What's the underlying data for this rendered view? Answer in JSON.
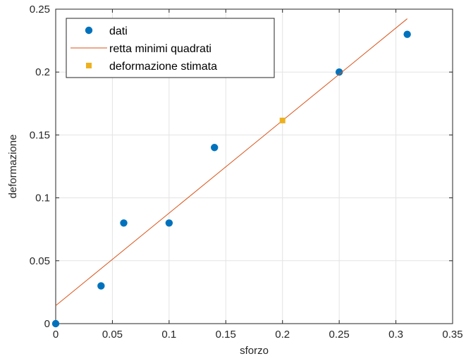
{
  "chart_data": {
    "type": "scatter",
    "title": "",
    "xlabel": "sforzo",
    "ylabel": "deformazione",
    "xlim": [
      0,
      0.35
    ],
    "ylim": [
      0,
      0.25
    ],
    "xticks": [
      "0",
      "0.05",
      "0.1",
      "0.15",
      "0.2",
      "0.25",
      "0.3",
      "0.35"
    ],
    "yticks": [
      "0",
      "0.05",
      "0.1",
      "0.15",
      "0.2",
      "0.25"
    ],
    "grid": true,
    "legend_position": "top-left",
    "series": [
      {
        "name": "dati",
        "kind": "markers-circle",
        "color": "#0072BD",
        "x": [
          0,
          0.04,
          0.06,
          0.1,
          0.14,
          0.25,
          0.31
        ],
        "y": [
          0,
          0.03,
          0.08,
          0.08,
          0.14,
          0.2,
          0.23
        ]
      },
      {
        "name": "retta minimi quadrati",
        "kind": "line",
        "color": "#D95319",
        "x": [
          0,
          0.31
        ],
        "y": [
          0.0143,
          0.2424
        ]
      },
      {
        "name": "deformazione stimata",
        "kind": "markers-square",
        "color": "#EDB120",
        "x": [
          0.2
        ],
        "y": [
          0.1615
        ]
      }
    ]
  }
}
